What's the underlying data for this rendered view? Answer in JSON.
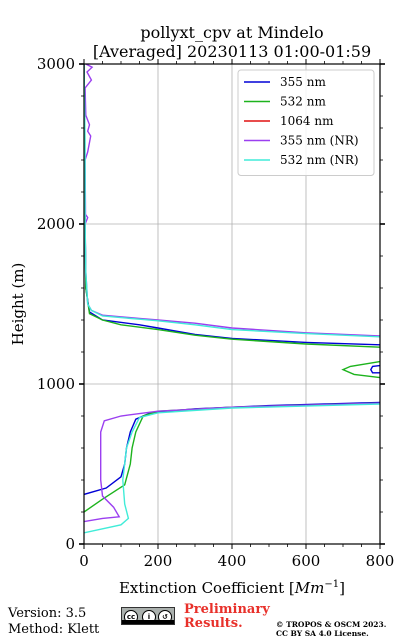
{
  "chart_data": {
    "type": "line",
    "title": "pollyxt_cpv at Mindelo",
    "subtitle": "[Averaged] 20230113 01:00-01:59",
    "xlabel": "Extinction Coefficient [$Mm^{-1}$]",
    "xlabel_text": "Extinction Coefficient [",
    "xlabel_unit_base": "Mm",
    "xlabel_unit_exp": "−1",
    "xlabel_close": "]",
    "ylabel": "Height (m)",
    "xlim": [
      0,
      800
    ],
    "ylim": [
      0,
      3000
    ],
    "xticks": [
      0,
      200,
      400,
      600,
      800
    ],
    "yticks": [
      0,
      1000,
      2000,
      3000
    ],
    "grid": true,
    "legend_position": "top-right",
    "series": [
      {
        "name": "355 nm",
        "color": "#0000d6",
        "points": [
          [
            0,
            310
          ],
          [
            60,
            350
          ],
          [
            100,
            420
          ],
          [
            110,
            500
          ],
          [
            115,
            600
          ],
          [
            125,
            700
          ],
          [
            140,
            780
          ],
          [
            180,
            820
          ],
          [
            300,
            845
          ],
          [
            500,
            865
          ],
          [
            800,
            885
          ],
          [
            800,
            null
          ],
          [
            800,
            1070
          ],
          [
            780,
            1070
          ],
          [
            775,
            1090
          ],
          [
            780,
            1110
          ],
          [
            800,
            1115
          ],
          [
            800,
            null
          ],
          [
            800,
            1245
          ],
          [
            600,
            1260
          ],
          [
            400,
            1285
          ],
          [
            300,
            1310
          ],
          [
            200,
            1350
          ],
          [
            150,
            1370
          ],
          [
            50,
            1400
          ],
          [
            15,
            1450
          ],
          [
            5,
            1600
          ],
          [
            3,
            2000
          ],
          [
            2,
            2500
          ],
          [
            0,
            3000
          ]
        ]
      },
      {
        "name": "532 nm",
        "color": "#1db31d",
        "points": [
          [
            0,
            200
          ],
          [
            50,
            280
          ],
          [
            110,
            370
          ],
          [
            125,
            500
          ],
          [
            130,
            600
          ],
          [
            140,
            700
          ],
          [
            160,
            800
          ],
          [
            200,
            830
          ],
          [
            400,
            855
          ],
          [
            800,
            880
          ],
          [
            800,
            null
          ],
          [
            800,
            1040
          ],
          [
            730,
            1060
          ],
          [
            700,
            1090
          ],
          [
            720,
            1110
          ],
          [
            800,
            1140
          ],
          [
            800,
            null
          ],
          [
            800,
            1230
          ],
          [
            600,
            1250
          ],
          [
            400,
            1280
          ],
          [
            300,
            1305
          ],
          [
            200,
            1340
          ],
          [
            100,
            1370
          ],
          [
            50,
            1400
          ],
          [
            15,
            1440
          ],
          [
            5,
            1600
          ],
          [
            3,
            2000
          ],
          [
            2,
            2500
          ],
          [
            0,
            3000
          ]
        ]
      },
      {
        "name": "1064 nm",
        "color": "#e01010",
        "points": []
      },
      {
        "name": "355 nm (NR)",
        "color": "#9b3ff0",
        "points": [
          [
            0,
            140
          ],
          [
            50,
            160
          ],
          [
            95,
            170
          ],
          [
            80,
            230
          ],
          [
            50,
            300
          ],
          [
            45,
            400
          ],
          [
            45,
            500
          ],
          [
            45,
            600
          ],
          [
            45,
            700
          ],
          [
            55,
            770
          ],
          [
            100,
            800
          ],
          [
            200,
            830
          ],
          [
            400,
            855
          ],
          [
            800,
            880
          ],
          [
            800,
            null
          ],
          [
            800,
            1300
          ],
          [
            600,
            1320
          ],
          [
            400,
            1350
          ],
          [
            300,
            1380
          ],
          [
            200,
            1400
          ],
          [
            150,
            1410
          ],
          [
            50,
            1430
          ],
          [
            20,
            1460
          ],
          [
            10,
            1500
          ],
          [
            5,
            1700
          ],
          [
            3,
            2000
          ],
          [
            10,
            2040
          ],
          [
            4,
            2060
          ],
          [
            3,
            2400
          ],
          [
            10,
            2450
          ],
          [
            18,
            2550
          ],
          [
            10,
            2580
          ],
          [
            15,
            2620
          ],
          [
            5,
            2680
          ],
          [
            3,
            2850
          ],
          [
            20,
            2900
          ],
          [
            8,
            2950
          ],
          [
            22,
            2980
          ],
          [
            5,
            3000
          ]
        ]
      },
      {
        "name": "532 nm (NR)",
        "color": "#40ecd8",
        "points": [
          [
            0,
            70
          ],
          [
            100,
            120
          ],
          [
            120,
            160
          ],
          [
            110,
            250
          ],
          [
            105,
            400
          ],
          [
            115,
            600
          ],
          [
            130,
            700
          ],
          [
            150,
            790
          ],
          [
            200,
            820
          ],
          [
            400,
            850
          ],
          [
            800,
            875
          ],
          [
            800,
            null
          ],
          [
            800,
            1295
          ],
          [
            600,
            1315
          ],
          [
            400,
            1340
          ],
          [
            300,
            1370
          ],
          [
            200,
            1395
          ],
          [
            150,
            1405
          ],
          [
            50,
            1425
          ],
          [
            20,
            1460
          ],
          [
            10,
            1500
          ],
          [
            5,
            1700
          ],
          [
            3,
            2000
          ],
          [
            3,
            2500
          ],
          [
            0,
            3000
          ]
        ]
      }
    ]
  },
  "footer": {
    "version": "Version: 3.5",
    "method": "Method: Klett",
    "preliminary_line1": "Preliminary",
    "preliminary_line2": "Results.",
    "license_line1": "© TROPOS & OSCM 2023.",
    "license_line2": "CC BY SA 4.0 License."
  }
}
